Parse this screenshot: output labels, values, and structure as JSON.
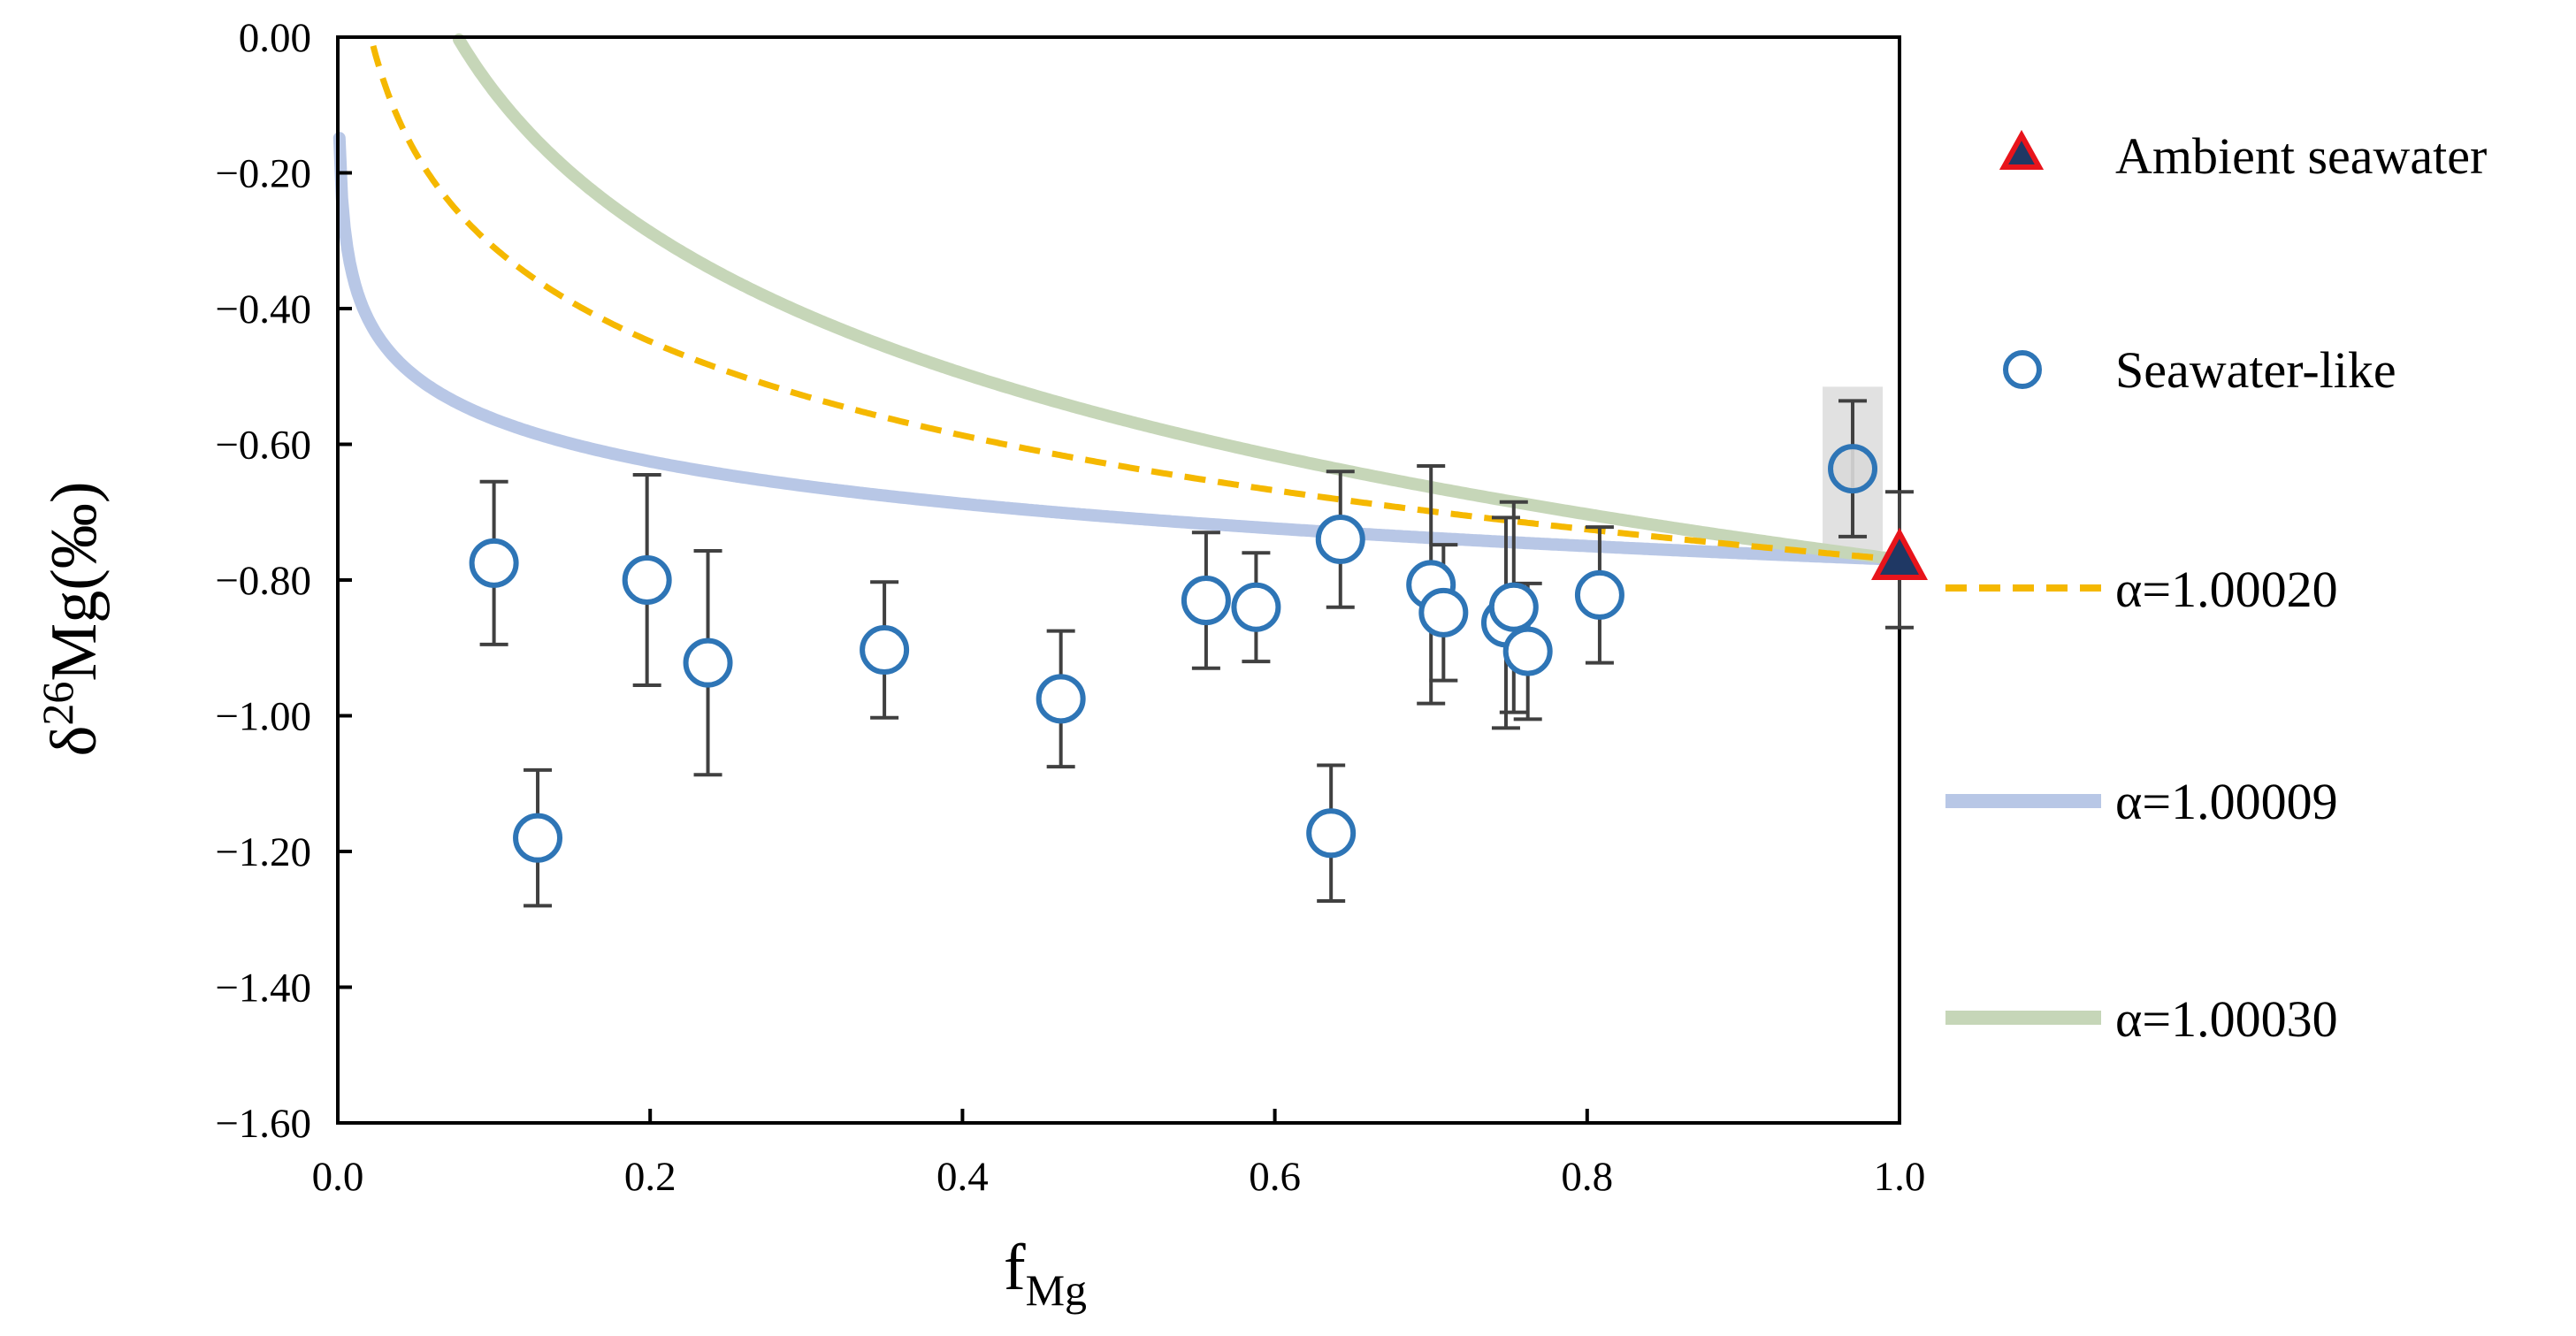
{
  "chart_data": {
    "type": "scatter",
    "title": "",
    "xlabel": {
      "main": "f",
      "sub": "Mg"
    },
    "ylabel": {
      "prefix": "δ",
      "sup": "26",
      "main": "Mg(‰)"
    },
    "xlim": [
      0.0,
      1.0
    ],
    "ylim": [
      -1.6,
      0.0
    ],
    "x_ticks": [
      0.0,
      0.2,
      0.4,
      0.6,
      0.8,
      1.0
    ],
    "x_tick_labels": [
      "0.0",
      "0.2",
      "0.4",
      "0.6",
      "0.8",
      "1.0"
    ],
    "y_ticks": [
      0.0,
      -0.2,
      -0.4,
      -0.6,
      -0.8,
      -1.0,
      -1.2,
      -1.4,
      -1.6
    ],
    "y_tick_labels": [
      "0.00",
      "−0.20",
      "−0.40",
      "−0.60",
      "−0.80",
      "−1.00",
      "−1.20",
      "−1.40",
      "−1.60"
    ],
    "grid": false,
    "legend_position": "right",
    "seawater_value": -0.77,
    "series": [
      {
        "name": "Seawater-like",
        "kind": "points",
        "marker": "circle",
        "color": "#2e75b6",
        "points": [
          {
            "x": 0.1,
            "y": -0.775,
            "err": 0.12
          },
          {
            "x": 0.128,
            "y": -1.18,
            "err": 0.1
          },
          {
            "x": 0.198,
            "y": -0.8,
            "err": 0.155
          },
          {
            "x": 0.237,
            "y": -0.922,
            "err": 0.165
          },
          {
            "x": 0.35,
            "y": -0.903,
            "err": 0.1
          },
          {
            "x": 0.463,
            "y": -0.975,
            "err": 0.1
          },
          {
            "x": 0.556,
            "y": -0.83,
            "err": 0.1
          },
          {
            "x": 0.588,
            "y": -0.84,
            "err": 0.08
          },
          {
            "x": 0.636,
            "y": -1.173,
            "err": 0.1
          },
          {
            "x": 0.642,
            "y": -0.74,
            "err": 0.1
          },
          {
            "x": 0.7,
            "y": -0.807,
            "err": 0.175
          },
          {
            "x": 0.708,
            "y": -0.848,
            "err": 0.1
          },
          {
            "x": 0.748,
            "y": -0.863,
            "err": 0.155
          },
          {
            "x": 0.753,
            "y": -0.84,
            "err": 0.155
          },
          {
            "x": 0.762,
            "y": -0.905,
            "err": 0.1
          },
          {
            "x": 0.808,
            "y": -0.822,
            "err": 0.1
          },
          {
            "x": 0.97,
            "y": -0.636,
            "err": 0.1,
            "highlight": true
          }
        ]
      },
      {
        "name": "Ambient seawater",
        "kind": "points",
        "marker": "triangle",
        "color": "#1f3864",
        "edge_color": "#e8141b",
        "points": [
          {
            "x": 1.0,
            "y": -0.77,
            "err": 0.1
          }
        ]
      },
      {
        "name": "α=1.00020",
        "kind": "line",
        "alpha": 1.0002,
        "style": "dashed",
        "color": "#f5b800"
      },
      {
        "name": "α=1.00009",
        "kind": "line",
        "alpha": 1.00009,
        "style": "solid",
        "color": "#b8c7e6"
      },
      {
        "name": "α=1.00030",
        "kind": "line",
        "alpha": 1.0003,
        "style": "solid",
        "color": "#c6d6b8"
      }
    ],
    "legend": [
      {
        "label": "Ambient seawater",
        "marker": "triangle"
      },
      {
        "label": "Seawater-like",
        "marker": "circle"
      },
      {
        "label": "α=1.00020",
        "marker": "dashed-line"
      },
      {
        "label": "α=1.00009",
        "marker": "solid-line-blue"
      },
      {
        "label": "α=1.00030",
        "marker": "solid-line-green"
      }
    ]
  }
}
